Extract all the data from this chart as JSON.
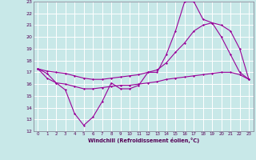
{
  "xlabel": "Windchill (Refroidissement éolien,°C)",
  "background_color": "#c8e8e8",
  "line_color": "#990099",
  "grid_color": "#ffffff",
  "xlim": [
    -0.5,
    23.5
  ],
  "ylim": [
    12,
    23
  ],
  "yticks": [
    12,
    13,
    14,
    15,
    16,
    17,
    18,
    19,
    20,
    21,
    22,
    23
  ],
  "xticks": [
    0,
    1,
    2,
    3,
    4,
    5,
    6,
    7,
    8,
    9,
    10,
    11,
    12,
    13,
    14,
    15,
    16,
    17,
    18,
    19,
    20,
    21,
    22,
    23
  ],
  "line1_x": [
    0,
    1,
    2,
    3,
    4,
    5,
    6,
    7,
    8,
    9,
    10,
    11,
    12,
    13,
    14,
    15,
    16,
    17,
    18,
    19,
    20,
    21,
    22,
    23
  ],
  "line1_y": [
    17.3,
    16.9,
    16.1,
    15.5,
    13.5,
    12.5,
    13.2,
    14.5,
    16.1,
    15.6,
    15.6,
    15.9,
    17.0,
    17.0,
    18.5,
    20.5,
    23.0,
    23.0,
    21.5,
    21.2,
    20.0,
    18.5,
    17.0,
    16.4
  ],
  "line2_x": [
    0,
    1,
    2,
    3,
    4,
    5,
    6,
    7,
    8,
    9,
    10,
    11,
    12,
    13,
    14,
    15,
    16,
    17,
    18,
    19,
    20,
    21,
    22,
    23
  ],
  "line2_y": [
    17.3,
    17.1,
    17.0,
    16.9,
    16.7,
    16.5,
    16.4,
    16.4,
    16.5,
    16.6,
    16.7,
    16.8,
    17.0,
    17.2,
    17.8,
    18.7,
    19.5,
    20.5,
    21.0,
    21.2,
    21.0,
    20.5,
    19.0,
    16.4
  ],
  "line3_x": [
    0,
    1,
    2,
    3,
    4,
    5,
    6,
    7,
    8,
    9,
    10,
    11,
    12,
    13,
    14,
    15,
    16,
    17,
    18,
    19,
    20,
    21,
    22,
    23
  ],
  "line3_y": [
    17.3,
    16.5,
    16.1,
    16.0,
    15.8,
    15.6,
    15.6,
    15.7,
    15.8,
    15.9,
    15.9,
    16.0,
    16.1,
    16.2,
    16.4,
    16.5,
    16.6,
    16.7,
    16.8,
    16.9,
    17.0,
    17.0,
    16.8,
    16.4
  ]
}
